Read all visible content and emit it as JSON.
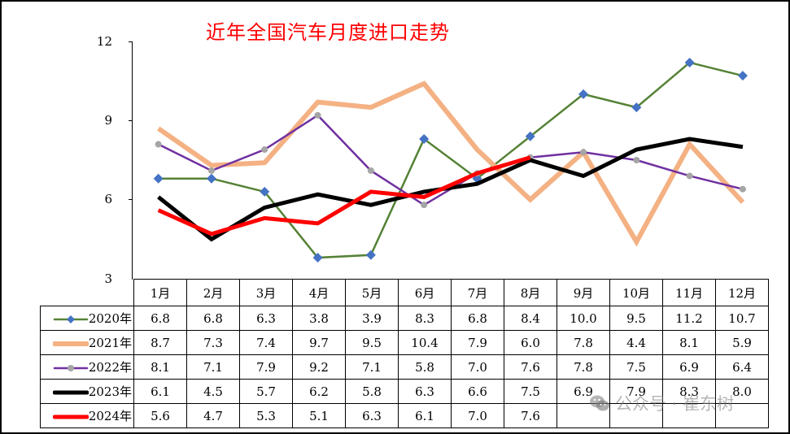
{
  "chart_data": {
    "type": "line",
    "title": "近年全国汽车月度进口走势",
    "xlabel": "",
    "ylabel": "",
    "ylim": [
      3,
      12
    ],
    "yticks": [
      3,
      6,
      9,
      12
    ],
    "grid": false,
    "legend_position": "data-table-left",
    "categories": [
      "1月",
      "2月",
      "3月",
      "4月",
      "5月",
      "6月",
      "7月",
      "8月",
      "9月",
      "10月",
      "11月",
      "12月"
    ],
    "series": [
      {
        "name": "2020年",
        "color": "#548235",
        "marker": "diamond",
        "marker_color": "#4472c4",
        "width": 2.5,
        "values": [
          6.8,
          6.8,
          6.3,
          3.8,
          3.9,
          8.3,
          6.8,
          8.4,
          10.0,
          9.5,
          11.2,
          10.7
        ]
      },
      {
        "name": "2021年",
        "color": "#f4b183",
        "marker": "none",
        "width": 6,
        "values": [
          8.7,
          7.3,
          7.4,
          9.7,
          9.5,
          10.4,
          7.9,
          6.0,
          7.8,
          4.4,
          8.1,
          5.9
        ]
      },
      {
        "name": "2022年",
        "color": "#7030a0",
        "marker": "circle",
        "marker_color": "#a5a5a5",
        "width": 2.5,
        "values": [
          8.1,
          7.1,
          7.9,
          9.2,
          7.1,
          5.8,
          7.0,
          7.6,
          7.8,
          7.5,
          6.9,
          6.4
        ]
      },
      {
        "name": "2023年",
        "color": "#000000",
        "marker": "none",
        "width": 5,
        "values": [
          6.1,
          4.5,
          5.7,
          6.2,
          5.8,
          6.3,
          6.6,
          7.5,
          6.9,
          7.9,
          8.3,
          8.0
        ]
      },
      {
        "name": "2024年",
        "color": "#ff0000",
        "marker": "none",
        "width": 5,
        "values": [
          5.6,
          4.7,
          5.3,
          5.1,
          6.3,
          6.1,
          7.0,
          7.6,
          null,
          null,
          null,
          null
        ]
      }
    ]
  },
  "table": {
    "headers": [
      "1月",
      "2月",
      "3月",
      "4月",
      "5月",
      "6月",
      "7月",
      "8月",
      "9月",
      "10月",
      "11月",
      "12月"
    ],
    "rows": [
      {
        "label": "2020年",
        "cells": [
          "6.8",
          "6.8",
          "6.3",
          "3.8",
          "3.9",
          "8.3",
          "6.8",
          "8.4",
          "10.0",
          "9.5",
          "11.2",
          "10.7"
        ]
      },
      {
        "label": "2021年",
        "cells": [
          "8.7",
          "7.3",
          "7.4",
          "9.7",
          "9.5",
          "10.4",
          "7.9",
          "6.0",
          "7.8",
          "4.4",
          "8.1",
          "5.9"
        ]
      },
      {
        "label": "2022年",
        "cells": [
          "8.1",
          "7.1",
          "7.9",
          "9.2",
          "7.1",
          "5.8",
          "7.0",
          "7.6",
          "7.8",
          "7.5",
          "6.9",
          "6.4"
        ]
      },
      {
        "label": "2023年",
        "cells": [
          "6.1",
          "4.5",
          "5.7",
          "6.2",
          "5.8",
          "6.3",
          "6.6",
          "7.5",
          "6.9",
          "7.9",
          "8.3",
          "8.0"
        ]
      },
      {
        "label": "2024年",
        "cells": [
          "5.6",
          "4.7",
          "5.3",
          "5.1",
          "6.3",
          "6.1",
          "7.0",
          "7.6",
          "",
          "",
          "",
          ""
        ]
      }
    ]
  },
  "axis": {
    "y_labels": [
      "12",
      "9",
      "6",
      "3"
    ]
  },
  "watermark": {
    "text": "公众号 · 崔东树",
    "icon": "wechat-icon"
  }
}
